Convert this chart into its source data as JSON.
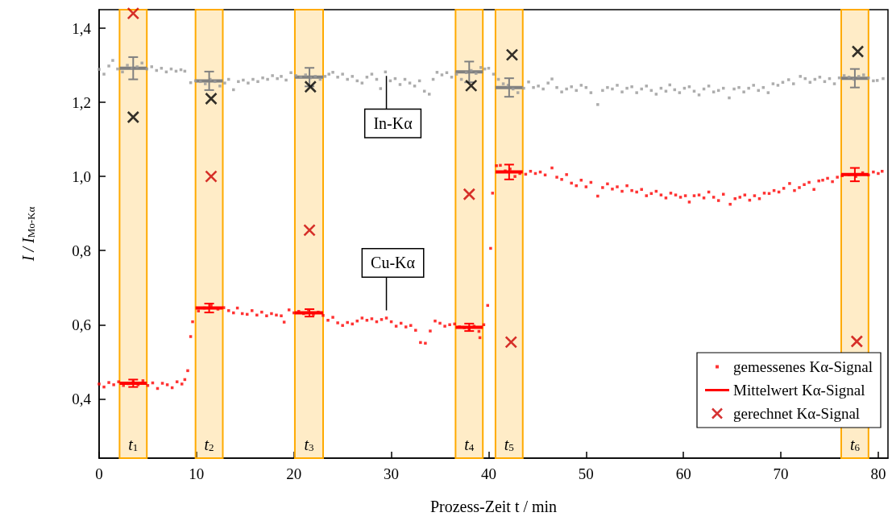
{
  "chart_data": {
    "type": "scatter",
    "xlabel": "Prozess-Zeit t / min",
    "ylabel": "I / I$_{Mo-Kα}$",
    "xlim": [
      0,
      81
    ],
    "xticks": [
      0,
      10,
      20,
      30,
      40,
      50,
      60,
      70,
      80
    ],
    "ylim": [
      0.24,
      1.45
    ],
    "yticks": [
      {
        "value": 0.4,
        "label": "0,4"
      },
      {
        "value": 0.6,
        "label": "0,6"
      },
      {
        "value": 0.8,
        "label": "0,8"
      },
      {
        "value": 1.0,
        "label": "1,0"
      },
      {
        "value": 1.2,
        "label": "1,2"
      },
      {
        "value": 1.4,
        "label": "1,4"
      }
    ],
    "grid": false,
    "legend": "bottom right",
    "series": [
      {
        "color": "#999999",
        "marker": "square",
        "x": [
          0,
          0.5,
          1,
          1.4,
          1.9,
          2.4,
          2.9,
          3.4,
          3.9,
          4.4,
          4.9,
          5.4,
          5.9,
          6.4,
          6.9,
          7.4,
          7.9,
          8.4,
          8.8,
          9.4,
          9.9,
          10.4,
          10.9,
          11.4,
          11.9,
          12.4,
          12.9,
          13.3,
          13.8,
          14.3,
          14.8,
          15.3,
          15.8,
          16.3,
          16.8,
          17.3,
          17.8,
          18.3,
          18.7,
          19.2,
          19.7,
          20.2,
          20.7,
          21.2,
          21.7,
          22.2,
          22.7,
          23.2,
          23.6,
          24,
          24.5,
          25,
          25.5,
          26,
          26.5,
          27,
          27.5,
          28,
          28.5,
          28.9,
          29.4,
          29.9,
          30.4,
          30.9,
          31.4,
          31.9,
          32.4,
          32.9,
          33.4,
          33.9,
          34.3,
          34.7,
          35.2,
          35.7,
          36.2,
          36.7,
          37.2,
          37.7,
          38.2,
          38.7,
          39.2,
          39.6,
          40,
          40.5,
          41,
          41.5,
          42,
          42.5,
          43,
          43.6,
          44.1,
          44.6,
          45.1,
          45.6,
          46.1,
          46.5,
          47,
          47.5,
          48,
          48.5,
          49,
          49.5,
          50,
          50.5,
          51.2,
          51.7,
          52.2,
          52.7,
          53.2,
          53.7,
          54.2,
          54.7,
          55.2,
          55.7,
          56.2,
          56.7,
          57.2,
          57.7,
          58.2,
          58.6,
          59.1,
          59.6,
          60.1,
          60.6,
          61.1,
          61.6,
          62.1,
          62.6,
          63.1,
          63.6,
          64.1,
          64.7,
          65.2,
          65.7,
          66.2,
          66.7,
          67.2,
          67.7,
          68.2,
          68.7,
          69.2,
          69.7,
          70.2,
          70.8,
          71.3,
          72,
          72.5,
          73,
          73.5,
          74,
          74.5,
          75,
          75.5,
          76,
          76.5,
          77,
          77.5,
          78,
          78.5,
          79,
          79.5,
          79.9,
          80.5
        ],
        "values": [
          1.289,
          1.276,
          1.298,
          1.313,
          1.29,
          1.282,
          1.3,
          1.292,
          1.296,
          1.306,
          1.29,
          1.296,
          1.286,
          1.292,
          1.282,
          1.29,
          1.284,
          1.288,
          1.284,
          1.253,
          1.258,
          1.256,
          1.25,
          1.262,
          1.256,
          1.244,
          1.252,
          1.262,
          1.234,
          1.256,
          1.26,
          1.252,
          1.262,
          1.256,
          1.266,
          1.262,
          1.272,
          1.264,
          1.27,
          1.26,
          1.28,
          1.272,
          1.268,
          1.274,
          1.266,
          1.27,
          1.262,
          1.27,
          1.276,
          1.281,
          1.268,
          1.276,
          1.262,
          1.27,
          1.258,
          1.252,
          1.268,
          1.276,
          1.262,
          1.237,
          1.282,
          1.258,
          1.264,
          1.248,
          1.262,
          1.252,
          1.244,
          1.258,
          1.23,
          1.222,
          1.262,
          1.281,
          1.274,
          1.28,
          1.268,
          1.276,
          1.262,
          1.28,
          1.286,
          1.278,
          1.294,
          1.29,
          1.292,
          1.276,
          1.262,
          1.25,
          1.246,
          1.236,
          1.226,
          1.238,
          1.255,
          1.24,
          1.244,
          1.236,
          1.252,
          1.263,
          1.24,
          1.228,
          1.236,
          1.242,
          1.232,
          1.246,
          1.24,
          1.226,
          1.194,
          1.232,
          1.24,
          1.236,
          1.246,
          1.228,
          1.238,
          1.242,
          1.226,
          1.236,
          1.244,
          1.232,
          1.222,
          1.238,
          1.23,
          1.247,
          1.234,
          1.226,
          1.238,
          1.242,
          1.23,
          1.22,
          1.236,
          1.244,
          1.228,
          1.232,
          1.238,
          1.212,
          1.236,
          1.24,
          1.228,
          1.238,
          1.246,
          1.232,
          1.24,
          1.226,
          1.25,
          1.246,
          1.254,
          1.261,
          1.25,
          1.27,
          1.264,
          1.254,
          1.262,
          1.268,
          1.256,
          1.264,
          1.25,
          1.266,
          1.272,
          1.268,
          1.262,
          1.27,
          1.274,
          1.266,
          1.258,
          1.259,
          1.264
        ]
      },
      {
        "name": "gemessenes Kα-Signal",
        "color": "#ff0000",
        "marker": "square",
        "x": [
          0,
          0.5,
          1,
          1.5,
          2,
          2.5,
          3,
          3.5,
          4,
          4.5,
          5,
          5.5,
          6,
          6.5,
          7,
          7.5,
          8,
          8.5,
          8.8,
          9.1,
          9.4,
          9.6,
          10.2,
          10.8,
          11.5,
          12.2,
          12.8,
          13.3,
          13.8,
          14.2,
          14.7,
          15.2,
          15.7,
          16.2,
          16.7,
          17.2,
          17.7,
          18.2,
          18.7,
          19,
          19.5,
          20,
          20.5,
          21,
          21.5,
          22,
          22.5,
          23,
          23.5,
          24,
          24.5,
          25,
          25.5,
          26,
          26.5,
          27,
          27.5,
          28,
          28.5,
          29,
          29.5,
          30,
          30.5,
          31,
          31.5,
          32,
          32.5,
          33,
          33.5,
          34,
          34.5,
          35,
          35.5,
          36,
          36.5,
          37,
          37.5,
          38,
          38.5,
          39,
          39.1,
          39.5,
          39.9,
          40.2,
          40.4,
          40.8,
          41.2,
          41.7,
          42.2,
          42.7,
          43.2,
          43.8,
          44.3,
          44.8,
          45.3,
          45.8,
          46.5,
          47,
          47.5,
          48,
          48.5,
          49,
          49.5,
          50,
          50.5,
          51.2,
          51.7,
          52.2,
          52.7,
          53.2,
          53.7,
          54.2,
          54.7,
          55.2,
          55.7,
          56.2,
          56.7,
          57.2,
          57.7,
          58.2,
          58.7,
          59.2,
          59.7,
          60.2,
          60.6,
          61.1,
          61.6,
          62.1,
          62.6,
          63.1,
          63.6,
          64.1,
          64.8,
          65.3,
          65.8,
          66.3,
          66.8,
          67.3,
          67.8,
          68.3,
          68.8,
          69.3,
          69.8,
          70.3,
          70.9,
          71.4,
          71.9,
          72.4,
          72.9,
          73.4,
          73.9,
          74.3,
          74.8,
          75.3,
          75.8,
          76.3,
          77,
          77.7,
          78.4,
          79,
          79.5,
          80,
          80.4
        ],
        "values": [
          0.44,
          0.432,
          0.444,
          0.438,
          0.446,
          0.436,
          0.441,
          0.446,
          0.438,
          0.449,
          0.436,
          0.443,
          0.428,
          0.442,
          0.438,
          0.43,
          0.446,
          0.44,
          0.452,
          0.476,
          0.568,
          0.608,
          0.637,
          0.645,
          0.652,
          0.642,
          0.646,
          0.638,
          0.632,
          0.645,
          0.63,
          0.628,
          0.638,
          0.626,
          0.634,
          0.624,
          0.63,
          0.626,
          0.624,
          0.607,
          0.64,
          0.632,
          0.636,
          0.63,
          0.64,
          0.628,
          0.634,
          0.625,
          0.612,
          0.62,
          0.605,
          0.598,
          0.606,
          0.602,
          0.61,
          0.618,
          0.612,
          0.616,
          0.608,
          0.614,
          0.618,
          0.608,
          0.596,
          0.604,
          0.594,
          0.598,
          0.585,
          0.552,
          0.55,
          0.583,
          0.61,
          0.604,
          0.596,
          0.6,
          0.602,
          0.594,
          0.592,
          0.588,
          0.596,
          0.582,
          0.565,
          0.6,
          0.652,
          0.806,
          0.955,
          1.029,
          1.03,
          1.015,
          1.02,
          1.0,
          1.008,
          1.006,
          1.014,
          1.008,
          1.012,
          1.004,
          1.023,
          0.998,
          0.992,
          1.005,
          0.982,
          0.975,
          0.99,
          0.972,
          0.984,
          0.947,
          0.97,
          0.98,
          0.966,
          0.972,
          0.96,
          0.975,
          0.962,
          0.958,
          0.965,
          0.948,
          0.954,
          0.96,
          0.95,
          0.942,
          0.955,
          0.95,
          0.944,
          0.948,
          0.931,
          0.948,
          0.95,
          0.942,
          0.958,
          0.944,
          0.935,
          0.952,
          0.925,
          0.94,
          0.944,
          0.95,
          0.936,
          0.948,
          0.94,
          0.955,
          0.954,
          0.962,
          0.958,
          0.968,
          0.981,
          0.962,
          0.97,
          0.978,
          0.984,
          0.965,
          0.988,
          0.99,
          0.995,
          0.986,
          0.998,
          1.002,
          1.005,
          1.0,
          1.01,
          1.004,
          1.012,
          1.008,
          1.014
        ]
      },
      {
        "type": "line",
        "color": "#808080",
        "marker": "none",
        "line_style": "solid",
        "x": [
          2.1,
          3.5,
          4.9,
          5,
          9.9,
          11.3,
          12.7,
          13,
          20.1,
          21.6,
          23.0,
          23.5,
          36.6,
          38.0,
          39.4,
          39.5,
          40.7,
          42.1,
          43.5,
          44,
          76.2,
          77.6,
          79.0
        ],
        "values": [
          1.292,
          1.292,
          1.292,
          null,
          1.258,
          1.258,
          1.258,
          null,
          1.268,
          1.268,
          1.268,
          null,
          1.282,
          1.282,
          1.282,
          null,
          1.24,
          1.24,
          1.24,
          null,
          1.265,
          1.265,
          1.265
        ],
        "errors": [
          null,
          0.03,
          null,
          null,
          null,
          0.025,
          null,
          null,
          null,
          0.025,
          null,
          null,
          null,
          0.028,
          null,
          null,
          null,
          0.025,
          null,
          null,
          null,
          0.025,
          null
        ]
      },
      {
        "type": "line",
        "name": "Mittelwert Kα-Signal",
        "color": "#ff0000",
        "marker": "none",
        "line_style": "solid",
        "x": [
          2.1,
          3.5,
          4.9,
          5,
          9.9,
          11.3,
          12.7,
          13,
          20.1,
          21.6,
          23.0,
          23.5,
          36.6,
          38.0,
          39.4,
          39.5,
          40.7,
          42.1,
          43.5,
          44,
          76.2,
          77.6,
          79.0
        ],
        "values": [
          0.442,
          0.442,
          0.442,
          null,
          0.645,
          0.645,
          0.645,
          null,
          0.632,
          0.632,
          0.632,
          null,
          0.593,
          0.593,
          0.593,
          null,
          1.012,
          1.012,
          1.012,
          null,
          1.005,
          1.005,
          1.005
        ],
        "errors": [
          null,
          0.01,
          null,
          null,
          null,
          0.012,
          null,
          null,
          null,
          0.01,
          null,
          null,
          null,
          0.01,
          null,
          null,
          null,
          0.02,
          null,
          null,
          null,
          0.018,
          null
        ]
      },
      {
        "color": "#000000",
        "marker": "cross",
        "x": [
          3.5,
          11.5,
          21.7,
          38.2,
          42.4,
          77.9
        ],
        "values": [
          1.16,
          1.21,
          1.242,
          1.245,
          1.328,
          1.337
        ]
      },
      {
        "name": "gerechnet Kα-Signal",
        "color": "#cc0000",
        "marker": "cross",
        "x": [
          3.5,
          11.5,
          21.6,
          38.0,
          42.3,
          77.8
        ],
        "values": [
          1.44,
          1.0,
          0.855,
          0.952,
          0.553,
          0.555
        ]
      }
    ],
    "bands": [
      {
        "axis": "x",
        "from": 2.1,
        "to": 4.9,
        "label": "t$_{1}$",
        "color": "#ffaa00"
      },
      {
        "axis": "x",
        "from": 9.9,
        "to": 12.7,
        "label": "t$_{2}$",
        "color": "#ffaa00"
      },
      {
        "axis": "x",
        "from": 20.1,
        "to": 23.0,
        "label": "t$_{3}$",
        "color": "#ffaa00"
      },
      {
        "axis": "x",
        "from": 36.6,
        "to": 39.4,
        "label": "t$_{4}$",
        "color": "#ffaa00"
      },
      {
        "axis": "x",
        "from": 40.7,
        "to": 43.5,
        "label": "t$_{5}$",
        "color": "#ffaa00"
      },
      {
        "axis": "x",
        "from": 76.2,
        "to": 79.0,
        "label": "t$_{6}$",
        "color": "#ffaa00"
      }
    ],
    "annotations": [
      {
        "text": "In-Kα",
        "x": 29.5,
        "y": 1.28
      },
      {
        "text": "Cu-Kα",
        "x": 29.5,
        "y": 0.63
      }
    ]
  }
}
